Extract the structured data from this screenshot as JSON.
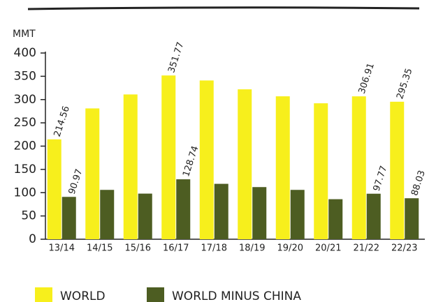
{
  "chart_data": {
    "type": "bar",
    "y_axis_label": "MMT",
    "categories": [
      "13/14",
      "14/15",
      "15/16",
      "16/17",
      "17/18",
      "18/19",
      "19/20",
      "20/21",
      "21/22",
      "22/23"
    ],
    "series": [
      {
        "name": "WORLD",
        "color": "#f7ef1c",
        "values": [
          214.56,
          281,
          311,
          351.77,
          341,
          322,
          307,
          292,
          306.91,
          295.35
        ],
        "value_labels": [
          "214.56",
          null,
          null,
          "351.77",
          null,
          null,
          null,
          null,
          "306.91",
          "295.35"
        ]
      },
      {
        "name": "WORLD MINUS CHINA",
        "color": "#4d5d22",
        "values": [
          90.97,
          106,
          98,
          128.74,
          119,
          112,
          106,
          86,
          97.77,
          88.03
        ],
        "value_labels": [
          "90.97",
          null,
          null,
          "128.74",
          null,
          null,
          null,
          null,
          "97.77",
          "88.03"
        ]
      }
    ],
    "ylim": [
      0,
      400
    ],
    "yticks": [
      0,
      50,
      100,
      150,
      200,
      250,
      300,
      350,
      400
    ]
  }
}
